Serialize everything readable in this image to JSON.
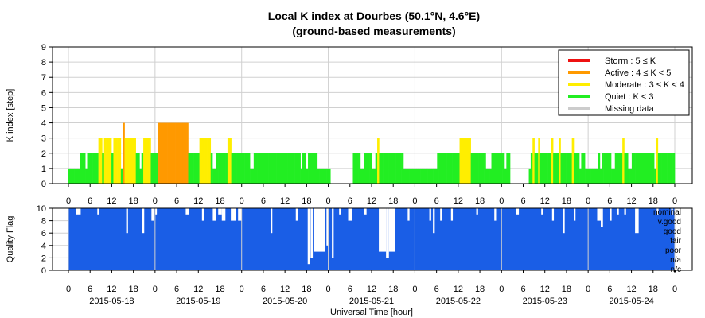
{
  "chart_data": [
    {
      "type": "bar",
      "title": "Local K index at Dourbes (50.1°N, 4.6°E)",
      "subtitle": "(ground-based measurements)",
      "ylabel": "K index [step]",
      "ylim": [
        0,
        9
      ],
      "yticks": [
        "0",
        "1",
        "2",
        "3",
        "4",
        "5",
        "6",
        "7",
        "8",
        "9"
      ],
      "grid": true,
      "x_unit": "hour",
      "x_range": [
        0,
        168
      ],
      "hour_ticks": [
        "0",
        "6",
        "12",
        "18",
        "0",
        "6",
        "12",
        "18",
        "0",
        "6",
        "12",
        "18",
        "0",
        "6",
        "12",
        "18",
        "0",
        "6",
        "12",
        "18",
        "0",
        "6",
        "12",
        "18",
        "0",
        "6",
        "12",
        "18",
        "0"
      ],
      "legend_position": "top-right",
      "legend": [
        {
          "label": "Storm : 5 ≤ K",
          "color": "#ee1111"
        },
        {
          "label": "Active : 4 ≤ K < 5",
          "color": "#ff9900"
        },
        {
          "label": "Moderate : 3 ≤ K < 4",
          "color": "#ffee00"
        },
        {
          "label": "Quiet : K < 3",
          "color": "#22ee22"
        },
        {
          "label": "Missing data",
          "color": "#cccccc"
        }
      ],
      "colors": {
        "quiet": "#22ee22",
        "moderate": "#ffee00",
        "active": "#ff9900",
        "storm": "#ee1111"
      },
      "values": [
        1,
        1,
        1,
        1,
        1,
        1,
        2,
        2,
        2,
        1,
        2,
        2,
        2,
        2,
        2,
        2,
        3,
        3,
        2,
        3,
        3,
        3,
        3,
        2,
        3,
        3,
        3,
        3,
        1,
        4,
        3,
        3,
        3,
        3,
        3,
        3,
        2,
        2,
        1,
        2,
        3,
        3,
        3,
        3,
        2,
        2,
        2,
        2,
        4,
        4,
        4,
        4,
        4,
        4,
        4,
        4,
        4,
        4,
        4,
        4,
        4,
        4,
        4,
        4,
        2,
        2,
        2,
        2,
        2,
        2,
        3,
        3,
        3,
        3,
        3,
        3,
        2,
        1,
        1,
        2,
        2,
        2,
        2,
        2,
        2,
        3,
        3,
        2,
        2,
        2,
        2,
        2,
        2,
        2,
        2,
        2,
        2,
        1,
        1,
        2,
        2,
        2,
        2,
        2,
        2,
        2,
        2,
        2,
        2,
        2,
        2,
        2,
        2,
        2,
        2,
        2,
        2,
        2,
        2,
        2,
        2,
        2,
        2,
        2,
        1,
        2,
        2,
        1,
        2,
        2,
        2,
        2,
        2,
        1,
        1,
        1,
        1,
        1,
        1,
        1,
        null,
        null,
        null,
        null,
        null,
        null,
        null,
        null,
        null,
        null,
        null,
        null,
        2,
        2,
        2,
        2,
        1,
        1,
        2,
        2,
        2,
        2,
        1,
        1,
        2,
        3,
        2,
        2,
        2,
        2,
        2,
        2,
        2,
        2,
        2,
        2,
        2,
        2,
        2,
        1,
        1,
        1,
        1,
        1,
        1,
        1,
        1,
        1,
        1,
        1,
        1,
        1,
        1,
        1,
        1,
        1,
        1,
        2,
        2,
        2,
        2,
        2,
        2,
        2,
        2,
        2,
        2,
        2,
        2,
        3,
        3,
        3,
        3,
        3,
        3,
        2,
        2,
        2,
        2,
        2,
        2,
        2,
        2,
        1,
        1,
        1,
        2,
        2,
        2,
        2,
        2,
        2,
        2,
        1,
        2,
        2,
        null,
        null,
        null,
        null,
        null,
        null,
        null,
        null,
        null,
        null,
        1,
        2,
        3,
        2,
        2,
        3,
        2,
        2,
        2,
        2,
        2,
        2,
        3,
        2,
        2,
        2,
        3,
        2,
        2,
        2,
        2,
        2,
        2,
        3,
        2,
        2,
        2,
        1,
        2,
        2,
        1,
        1,
        1,
        1,
        1,
        1,
        1,
        2,
        1,
        2,
        2,
        2,
        2,
        2,
        1,
        1,
        2,
        2,
        2,
        2,
        3,
        2,
        2,
        1,
        1,
        2,
        2,
        2,
        2,
        2,
        2,
        2,
        2,
        2,
        2,
        2,
        2,
        1,
        3,
        2,
        2,
        2,
        2,
        2,
        2,
        2,
        2,
        2
      ]
    },
    {
      "type": "area",
      "ylabel": "Quality Flag",
      "ylim": [
        0,
        10
      ],
      "yticks": [
        "0",
        "2",
        "4",
        "6",
        "8",
        "10"
      ],
      "xlabel": "Universal Time [hour]",
      "dates": [
        "2015-05-18",
        "2015-05-19",
        "2015-05-20",
        "2015-05-21",
        "2015-05-22",
        "2015-05-23",
        "2015-05-24"
      ],
      "flag_labels": [
        "nominal",
        "v.good",
        "good",
        "fair",
        "poor",
        "n/a",
        "n/c"
      ],
      "fill_color": "#1a5ee6",
      "dips": [
        {
          "t": 2.2,
          "w": 1.2,
          "v": 9
        },
        {
          "t": 8,
          "w": 0.5,
          "v": 9
        },
        {
          "t": 16,
          "w": 0.5,
          "v": 6
        },
        {
          "t": 20.5,
          "w": 0.5,
          "v": 6
        },
        {
          "t": 23,
          "w": 0.6,
          "v": 8
        },
        {
          "t": 24,
          "w": 0.5,
          "v": 9
        },
        {
          "t": 32.5,
          "w": 0.8,
          "v": 9
        },
        {
          "t": 37,
          "w": 0.5,
          "v": 8
        },
        {
          "t": 40,
          "w": 1.0,
          "v": 8
        },
        {
          "t": 41.5,
          "w": 1.0,
          "v": 9
        },
        {
          "t": 42.5,
          "w": 1.0,
          "v": 8
        },
        {
          "t": 45,
          "w": 1.5,
          "v": 8
        },
        {
          "t": 47,
          "w": 1.0,
          "v": 8
        },
        {
          "t": 56,
          "w": 0.5,
          "v": 6
        },
        {
          "t": 63,
          "w": 0.5,
          "v": 8
        },
        {
          "t": 66.3,
          "w": 0.6,
          "v": 1
        },
        {
          "t": 67.1,
          "w": 0.6,
          "v": 2
        },
        {
          "t": 68,
          "w": 3.0,
          "v": 3
        },
        {
          "t": 71.5,
          "w": 0.5,
          "v": 4
        },
        {
          "t": 73,
          "w": 0.5,
          "v": 2
        },
        {
          "t": 75,
          "w": 0.5,
          "v": 9
        },
        {
          "t": 77.5,
          "w": 1.0,
          "v": 8
        },
        {
          "t": 82,
          "w": 0.6,
          "v": 9
        },
        {
          "t": 86,
          "w": 2.0,
          "v": 3
        },
        {
          "t": 88,
          "w": 0.8,
          "v": 2
        },
        {
          "t": 88.8,
          "w": 1.6,
          "v": 3
        },
        {
          "t": 94,
          "w": 0.5,
          "v": 8
        },
        {
          "t": 100,
          "w": 0.5,
          "v": 8
        },
        {
          "t": 101,
          "w": 0.5,
          "v": 6
        },
        {
          "t": 103,
          "w": 0.5,
          "v": 8
        },
        {
          "t": 106,
          "w": 0.5,
          "v": 8
        },
        {
          "t": 113,
          "w": 0.5,
          "v": 9
        },
        {
          "t": 118,
          "w": 0.5,
          "v": 8
        },
        {
          "t": 124,
          "w": 0.8,
          "v": 9
        },
        {
          "t": 131,
          "w": 0.5,
          "v": 9
        },
        {
          "t": 134,
          "w": 0.5,
          "v": 8
        },
        {
          "t": 137,
          "w": 0.5,
          "v": 6
        },
        {
          "t": 140,
          "w": 0.5,
          "v": 8
        },
        {
          "t": 146.5,
          "w": 1.0,
          "v": 8
        },
        {
          "t": 147.5,
          "w": 0.6,
          "v": 7
        },
        {
          "t": 150,
          "w": 0.5,
          "v": 8
        },
        {
          "t": 152,
          "w": 0.5,
          "v": 9
        },
        {
          "t": 154,
          "w": 0.5,
          "v": 9
        },
        {
          "t": 157,
          "w": 1.0,
          "v": 6
        },
        {
          "t": 163,
          "w": 0.5,
          "v": 9
        },
        {
          "t": 167,
          "w": 0.5,
          "v": 9
        }
      ]
    }
  ]
}
